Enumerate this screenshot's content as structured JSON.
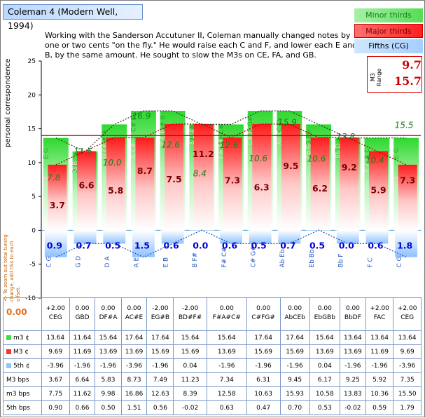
{
  "title": "Coleman 4 (Modern Well, 1994)",
  "description": "Working with the Sanderson Accutuner II, Coleman manually changed notes by one or two cents \"on the fly.\" He would raise each C and F, and lower each E and B, by the same amount. He sought to slow the M3s on CE, FA, and GB.",
  "legend": {
    "minor": "Minor thirds",
    "major": "Major thirds",
    "fifths": "Fifths (CG)"
  },
  "range": {
    "label": "M3 Range",
    "low": "9.7",
    "high": "15.7"
  },
  "ylabel": "personal correspondence",
  "side_note": "<- To zoom out total tuning change, add this to each offset.",
  "side_value": "0.00",
  "colors": {
    "minor": "#44dd44",
    "major": "#ff2a2a",
    "fifths": "#8fc4ff",
    "ref_line": "#c00000",
    "minor_text": "#188018",
    "major_text": "#7d0000",
    "fifth_text": "#0000d0"
  },
  "chart_data": {
    "type": "bar",
    "ylim": [
      -10,
      25
    ],
    "yticks": [
      -10,
      -5,
      0,
      5,
      10,
      15,
      20,
      25
    ],
    "reference_line": 14,
    "categories": [
      "CEG",
      "GBD",
      "DF#A",
      "AC#E",
      "EG#B",
      "BD#F#",
      "F#A#C#",
      "C#FG#",
      "AbCEb",
      "EbGBb",
      "BbDF",
      "FAC",
      "CEG"
    ],
    "minor_labels": [
      "E G",
      "B D",
      "F# A",
      "C# E",
      "G# B",
      "D# F#",
      "A# C#",
      "F G#",
      "C Eb",
      "G Bb",
      "D F",
      "A C",
      "E G"
    ],
    "major_labels": [
      "C E",
      "G B",
      "D F#",
      "A C#",
      "E G#",
      "B D#",
      "F# A#",
      "C# F",
      "Ab C",
      "Eb G",
      "Bb D",
      "F A",
      "C E"
    ],
    "fifth_labels": [
      "C G",
      "G D",
      "D A",
      "A E",
      "E B",
      "B F#",
      "F# C#",
      "C# G#",
      "Ab Eb",
      "Eb Bb",
      "Bb F",
      "F C",
      "C G"
    ],
    "offsets": [
      "+2.00",
      "0.00",
      "0.00",
      "0.00",
      "-2.00",
      "-2.00",
      "0.00",
      "0.00",
      "0.00",
      "0.00",
      "0.00",
      "+2.00",
      "+2.00"
    ],
    "series": [
      {
        "name": "m3 ¢",
        "values": [
          13.64,
          11.64,
          15.64,
          17.64,
          17.64,
          15.64,
          15.64,
          17.64,
          17.64,
          15.64,
          13.64,
          13.64,
          13.64
        ]
      },
      {
        "name": "M3 ¢",
        "values": [
          9.69,
          11.69,
          13.69,
          13.69,
          15.69,
          15.69,
          13.69,
          15.69,
          15.69,
          13.69,
          13.69,
          11.69,
          9.69
        ]
      },
      {
        "name": "5th ¢",
        "values": [
          -3.96,
          -1.96,
          -1.96,
          -3.96,
          -1.96,
          0.04,
          -1.96,
          -1.96,
          -1.96,
          0.04,
          -1.96,
          -1.96,
          -3.96
        ]
      },
      {
        "name": "M3 bps",
        "values": [
          3.67,
          6.64,
          5.83,
          8.73,
          7.49,
          11.23,
          7.34,
          6.31,
          9.45,
          6.17,
          9.25,
          5.92,
          7.35
        ]
      },
      {
        "name": "m3 bps",
        "values": [
          7.75,
          11.62,
          9.98,
          16.86,
          12.63,
          8.39,
          12.58,
          10.63,
          15.93,
          10.58,
          13.83,
          10.36,
          15.5
        ]
      },
      {
        "name": "5th bps",
        "values": [
          0.9,
          0.66,
          0.5,
          1.51,
          0.56,
          -0.02,
          0.63,
          0.47,
          0.7,
          0.53,
          -0.02,
          0.59,
          1.79
        ]
      }
    ],
    "bar_labels": {
      "major_bps": [
        "3.7",
        "6.6",
        "5.8",
        "8.7",
        "7.5",
        "11.2",
        "7.3",
        "6.3",
        "9.5",
        "6.2",
        "9.2",
        "5.9",
        "7.3"
      ],
      "minor_bps": [
        "7.8",
        "11.6",
        "10.0",
        "16.9",
        "12.6",
        "8.4",
        "12.6",
        "10.6",
        "15.9",
        "10.6",
        "13.8",
        "10.4",
        "15.5"
      ],
      "fifth_bps": [
        "0.9",
        "0.7",
        "0.5",
        "1.5",
        "0.6",
        "0.0",
        "0.6",
        "0.5",
        "0.7",
        "0.5",
        "0.0",
        "0.6",
        "1.8"
      ]
    }
  }
}
